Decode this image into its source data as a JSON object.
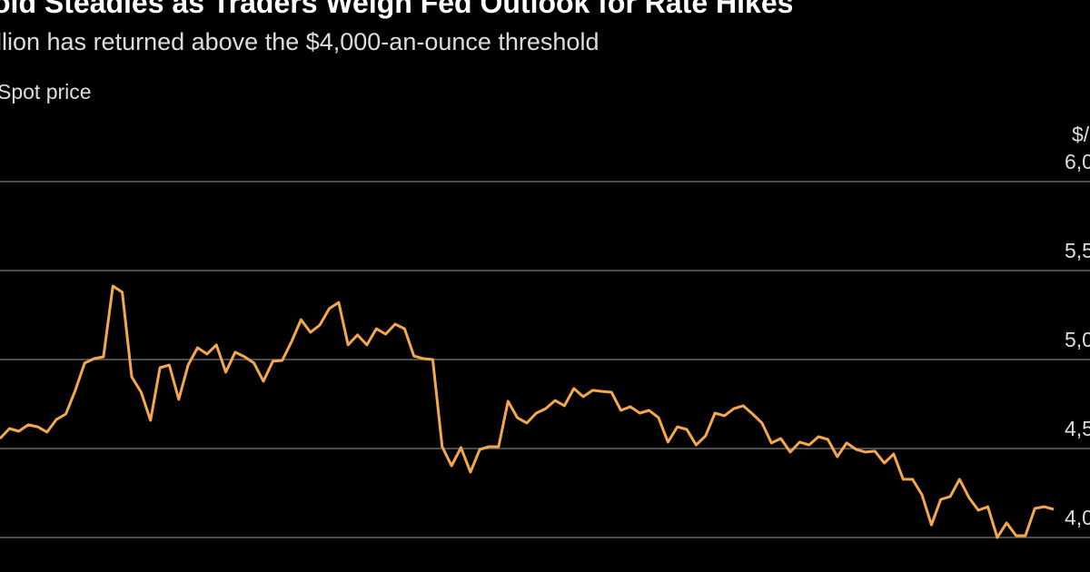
{
  "chart_data": {
    "type": "line",
    "title": "old Steadies as Traders Weigh Fed Outlook for Rate Hikes",
    "subtitle": "llion has returned above the $4,000-an-ounce threshold",
    "series_label": "Spot price",
    "y_unit": "$/",
    "color": "#f5a84b",
    "values": [
      4556,
      4612,
      4597,
      4633,
      4622,
      4592,
      4663,
      4694,
      4827,
      4980,
      5005,
      5015,
      5413,
      5378,
      4903,
      4816,
      4658,
      4954,
      4969,
      4776,
      4969,
      5066,
      5031,
      5082,
      4929,
      5041,
      5015,
      4980,
      4878,
      4990,
      4995,
      5102,
      5224,
      5153,
      5194,
      5286,
      5321,
      5082,
      5138,
      5082,
      5173,
      5143,
      5199,
      5173,
      5020,
      5005,
      5000,
      4510,
      4403,
      4505,
      4367,
      4495,
      4510,
      4510,
      4765,
      4673,
      4643,
      4699,
      4724,
      4770,
      4740,
      4837,
      4791,
      4827,
      4821,
      4816,
      4714,
      4735,
      4699,
      4714,
      4673,
      4536,
      4622,
      4607,
      4520,
      4571,
      4699,
      4684,
      4724,
      4740,
      4694,
      4643,
      4531,
      4556,
      4480,
      4536,
      4520,
      4566,
      4551,
      4454,
      4531,
      4495,
      4480,
      4485,
      4418,
      4469,
      4327,
      4327,
      4240,
      4071,
      4214,
      4230,
      4327,
      4224,
      4153,
      4173,
      4000,
      4082,
      4010,
      4010,
      4163,
      4173,
      4158
    ],
    "ylim": [
      3908,
      6102
    ],
    "yticks": [
      {
        "value": 6000,
        "label": "6,0"
      },
      {
        "value": 5500,
        "label": "5,5"
      },
      {
        "value": 5000,
        "label": "5,0"
      },
      {
        "value": 4500,
        "label": "4,5"
      },
      {
        "value": 4000,
        "label": "4,0"
      }
    ],
    "grid": true
  }
}
